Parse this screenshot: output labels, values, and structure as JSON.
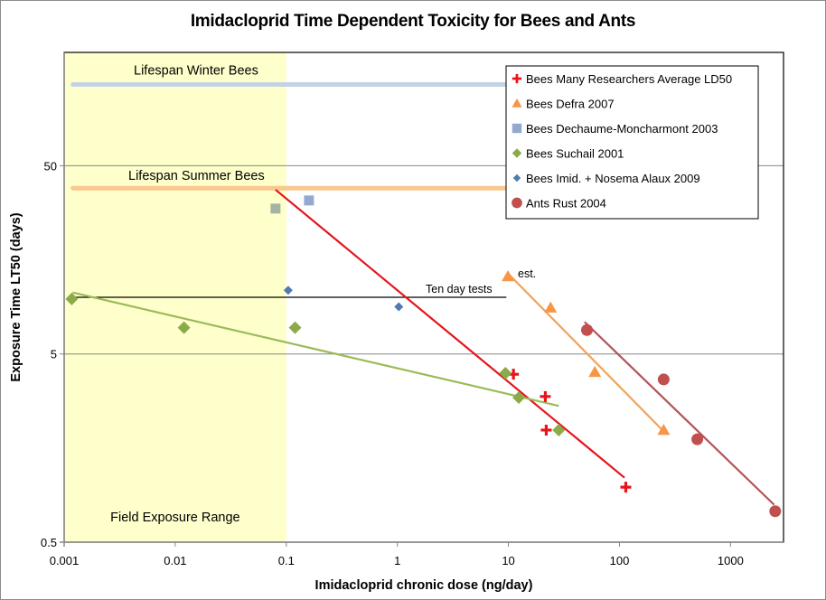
{
  "chart_data": {
    "type": "scatter",
    "title": "Imidacloprid Time Dependent Toxicity for Bees and Ants",
    "xlabel": "Imidacloprid chronic dose (ng/day)",
    "ylabel": "Exposure Time LT50 (days)",
    "xscale": "log",
    "yscale": "log",
    "xlim": [
      0.001,
      3000
    ],
    "ylim": [
      0.5,
      200
    ],
    "xticks": [
      0.001,
      0.01,
      0.1,
      1,
      10,
      100,
      1000
    ],
    "xtick_labels": [
      "0.001",
      "0.01",
      "0.1",
      "1",
      "10",
      "100",
      "1000"
    ],
    "yticks": [
      0.5,
      5,
      50
    ],
    "ytick_labels": [
      "0.5",
      "5",
      "50"
    ],
    "grid": "horizontal-major",
    "legend_position": "top-right",
    "series": [
      {
        "name": "Bees Many Researchers Average LD50",
        "marker": "cross",
        "color": "#e8141b",
        "points": [
          [
            11.1,
            3.9
          ],
          [
            21.5,
            2.97
          ],
          [
            21.9,
            1.97
          ],
          [
            114,
            0.98
          ]
        ],
        "trendline": {
          "color": "#e0161c",
          "from": [
            0.08,
            37.3
          ],
          "to": [
            111,
            1.1
          ]
        }
      },
      {
        "name": "Bees Defra 2007",
        "marker": "triangle",
        "color": "#f79646",
        "points": [
          [
            9.9,
            12.9
          ],
          [
            24,
            8.8
          ],
          [
            60,
            4.0
          ],
          [
            250,
            1.97
          ]
        ],
        "trendline": {
          "color": "#f4a15a",
          "from": [
            9.9,
            13.4
          ],
          "to": [
            250,
            1.94
          ]
        }
      },
      {
        "name": "Bees  Dechaume-Moncharmont 2003",
        "marker": "square",
        "color": "#95a9cf",
        "points": [
          [
            0.08,
            29.6
          ],
          [
            0.16,
            32.7
          ]
        ]
      },
      {
        "name": "Bees  Suchail 2001",
        "marker": "diamond",
        "color": "#8bab48",
        "points": [
          [
            0.00117,
            9.8
          ],
          [
            0.012,
            6.9
          ],
          [
            0.12,
            6.9
          ],
          [
            9.4,
            3.95
          ],
          [
            12.4,
            2.93
          ],
          [
            28.4,
            1.97
          ]
        ],
        "trendline": {
          "color": "#9bbb59",
          "from": [
            0.00119,
            10.6
          ],
          "to": [
            28.4,
            2.65
          ]
        }
      },
      {
        "name": "Bees Imid. + Nosema Alaux 2009",
        "marker": "diamond-small",
        "color": "#4f7bb0",
        "points": [
          [
            0.104,
            10.9
          ],
          [
            1.03,
            8.9
          ]
        ]
      },
      {
        "name": "Ants  Rust 2004",
        "marker": "circle",
        "color": "#c0504d",
        "points": [
          [
            51,
            6.7
          ],
          [
            250,
            3.66
          ],
          [
            502,
            1.76
          ],
          [
            2525,
            0.73
          ]
        ],
        "trendline": {
          "color": "#b4545a",
          "from": [
            48.5,
            7.4
          ],
          "to": [
            2470,
            0.79
          ]
        }
      }
    ],
    "reference_lines": [
      {
        "name": "Lifespan Winter Bees",
        "y": 135,
        "x_from": 0.0012,
        "x_to": 10,
        "color": "#c3d3e5"
      },
      {
        "name": "Lifespan Summer Bees",
        "y": 38,
        "x_from": 0.0012,
        "x_to": 10,
        "color": "#fac78e"
      },
      {
        "name": "Ten day tests",
        "y": 10,
        "x_from": 0.0012,
        "x_to": 9.5,
        "color": "#000000"
      }
    ],
    "shaded_region": {
      "label": "Field Exposure Range",
      "x_from": 0.001,
      "x_to": 0.1,
      "color": "#ffffcc"
    },
    "annotations": [
      {
        "text": "Lifespan Winter Bees",
        "anchor": "upper-left inside field range"
      },
      {
        "text": "Lifespan Summer Bees",
        "anchor": "above summer line"
      },
      {
        "text": "Ten day tests",
        "anchor": "above ten day line near x=3"
      },
      {
        "text": "est.",
        "anchor": "next to first Defra point"
      },
      {
        "text": "Field Exposure Range",
        "anchor": "bottom of shaded region"
      }
    ]
  }
}
